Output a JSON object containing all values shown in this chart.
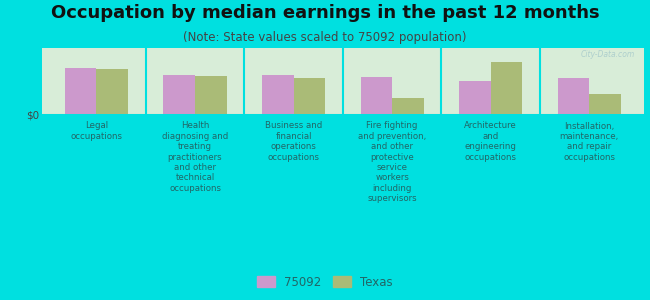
{
  "title": "Occupation by median earnings in the past 12 months",
  "subtitle": "(Note: State values scaled to 75092 population)",
  "background_color": "#00e0e0",
  "plot_background_left": "#d8edd8",
  "plot_background_right": "#e8f5e8",
  "categories": [
    "Legal\noccupations",
    "Health\ndiagnosing and\ntreating\npractitioners\nand other\ntechnical\noccupations",
    "Business and\nfinancial\noperations\noccupations",
    "Fire fighting\nand prevention,\nand other\nprotective\nservice\nworkers\nincluding\nsupervisors",
    "Architecture\nand\nengineering\noccupations",
    "Installation,\nmaintenance,\nand repair\noccupations"
  ],
  "values_75092": [
    0.8,
    0.68,
    0.68,
    0.65,
    0.58,
    0.62
  ],
  "values_texas": [
    0.78,
    0.66,
    0.62,
    0.28,
    0.9,
    0.35
  ],
  "color_75092": "#cc99cc",
  "color_texas": "#aabb77",
  "legend_75092": "75092",
  "legend_texas": "Texas",
  "ylabel": "$0",
  "bar_width": 0.32,
  "watermark": "City-Data.com",
  "title_fontsize": 13,
  "subtitle_fontsize": 8.5,
  "label_fontsize": 6.2,
  "legend_fontsize": 8.5,
  "ylabel_fontsize": 7.5
}
